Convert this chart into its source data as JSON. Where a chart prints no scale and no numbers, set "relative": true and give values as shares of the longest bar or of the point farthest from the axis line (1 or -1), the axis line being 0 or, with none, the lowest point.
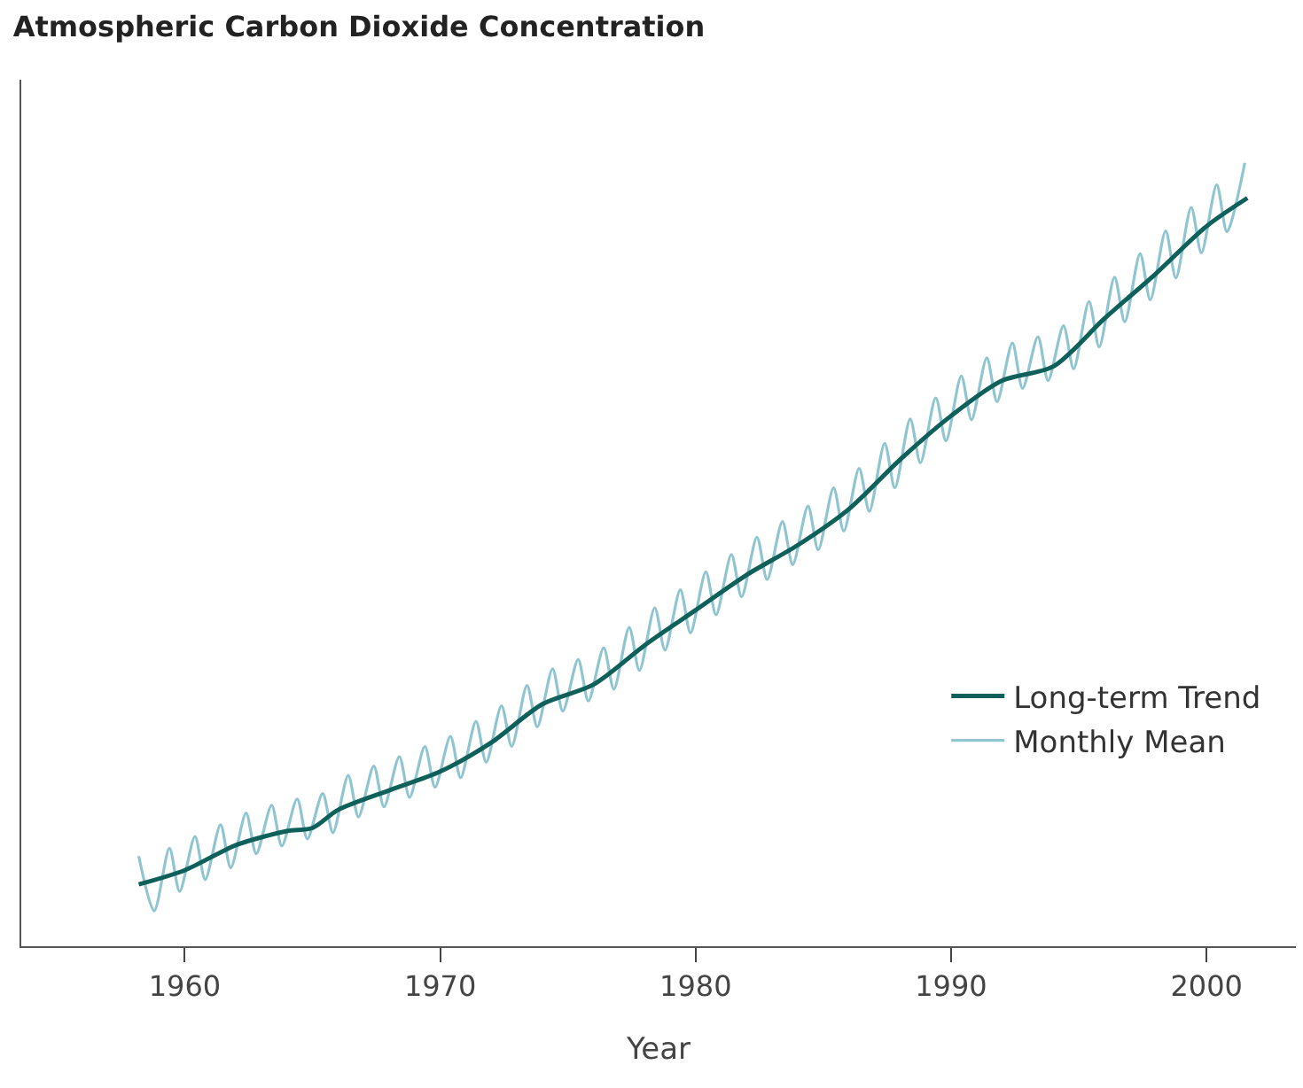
{
  "chart_data": {
    "type": "line",
    "title": "Atmospheric Carbon Dioxide Concentration",
    "xlabel": "Year",
    "relative": true,
    "xlim": [
      1953.6,
      2003.5
    ],
    "xticks": [
      1960,
      1970,
      1980,
      1990,
      2000
    ],
    "grid": false,
    "legend": "bottom right",
    "marker": "none",
    "line_style": "solid",
    "series": [
      {
        "name": "Long-term Trend",
        "color": "#0f5f5a",
        "x": [
          1958.2,
          1960,
          1962,
          1964,
          1965,
          1966,
          1968,
          1970,
          1972,
          1974,
          1976,
          1978,
          1980,
          1982,
          1984,
          1986,
          1988,
          1990,
          1992,
          1994,
          1996,
          1998,
          2000,
          2001.6
        ],
        "values": [
          0.079,
          0.097,
          0.129,
          0.147,
          0.151,
          0.174,
          0.199,
          0.223,
          0.26,
          0.309,
          0.334,
          0.384,
          0.429,
          0.474,
          0.512,
          0.558,
          0.621,
          0.677,
          0.722,
          0.74,
          0.801,
          0.858,
          0.919,
          0.955
        ]
      },
      {
        "name": "Monthly Mean",
        "color": "#8fc5d0",
        "x": [
          1958.2,
          1958.8,
          1959.4,
          1959.8,
          1960.4,
          1960.8,
          1961.4,
          1961.8,
          1962.4,
          1962.8,
          1963.4,
          1963.8,
          1964.4,
          1964.8,
          1965.4,
          1965.8,
          1966.4,
          1966.8,
          1967.4,
          1967.8,
          1968.4,
          1968.8,
          1969.4,
          1969.8,
          1970.4,
          1970.8,
          1971.4,
          1971.8,
          1972.4,
          1972.8,
          1973.4,
          1973.8,
          1974.4,
          1974.8,
          1975.4,
          1975.8,
          1976.4,
          1976.8,
          1977.4,
          1977.8,
          1978.4,
          1978.8,
          1979.4,
          1979.8,
          1980.4,
          1980.8,
          1981.4,
          1981.8,
          1982.4,
          1982.8,
          1983.4,
          1983.8,
          1984.4,
          1984.8,
          1985.4,
          1985.8,
          1986.4,
          1986.8,
          1987.4,
          1987.8,
          1988.4,
          1988.8,
          1989.4,
          1989.8,
          1990.4,
          1990.8,
          1991.4,
          1991.8,
          1992.4,
          1992.8,
          1993.4,
          1993.8,
          1994.4,
          1994.8,
          1995.4,
          1995.8,
          1996.4,
          1996.8,
          1997.4,
          1997.8,
          1998.4,
          1998.8,
          1999.4,
          1999.8,
          2000.4,
          2000.8,
          2001.5
        ],
        "values": [
          0.115,
          0.045,
          0.125,
          0.07,
          0.14,
          0.085,
          0.155,
          0.1,
          0.17,
          0.118,
          0.18,
          0.128,
          0.188,
          0.137,
          0.195,
          0.145,
          0.218,
          0.165,
          0.23,
          0.178,
          0.242,
          0.19,
          0.255,
          0.203,
          0.268,
          0.215,
          0.287,
          0.235,
          0.307,
          0.255,
          0.333,
          0.28,
          0.354,
          0.3,
          0.366,
          0.313,
          0.381,
          0.328,
          0.407,
          0.352,
          0.432,
          0.378,
          0.455,
          0.4,
          0.478,
          0.423,
          0.5,
          0.446,
          0.522,
          0.468,
          0.542,
          0.487,
          0.562,
          0.506,
          0.585,
          0.53,
          0.61,
          0.555,
          0.642,
          0.585,
          0.673,
          0.617,
          0.7,
          0.645,
          0.728,
          0.672,
          0.751,
          0.695,
          0.77,
          0.712,
          0.778,
          0.722,
          0.792,
          0.737,
          0.823,
          0.765,
          0.854,
          0.797,
          0.884,
          0.825,
          0.913,
          0.853,
          0.943,
          0.885,
          0.972,
          0.912,
          1.0
        ]
      }
    ]
  }
}
